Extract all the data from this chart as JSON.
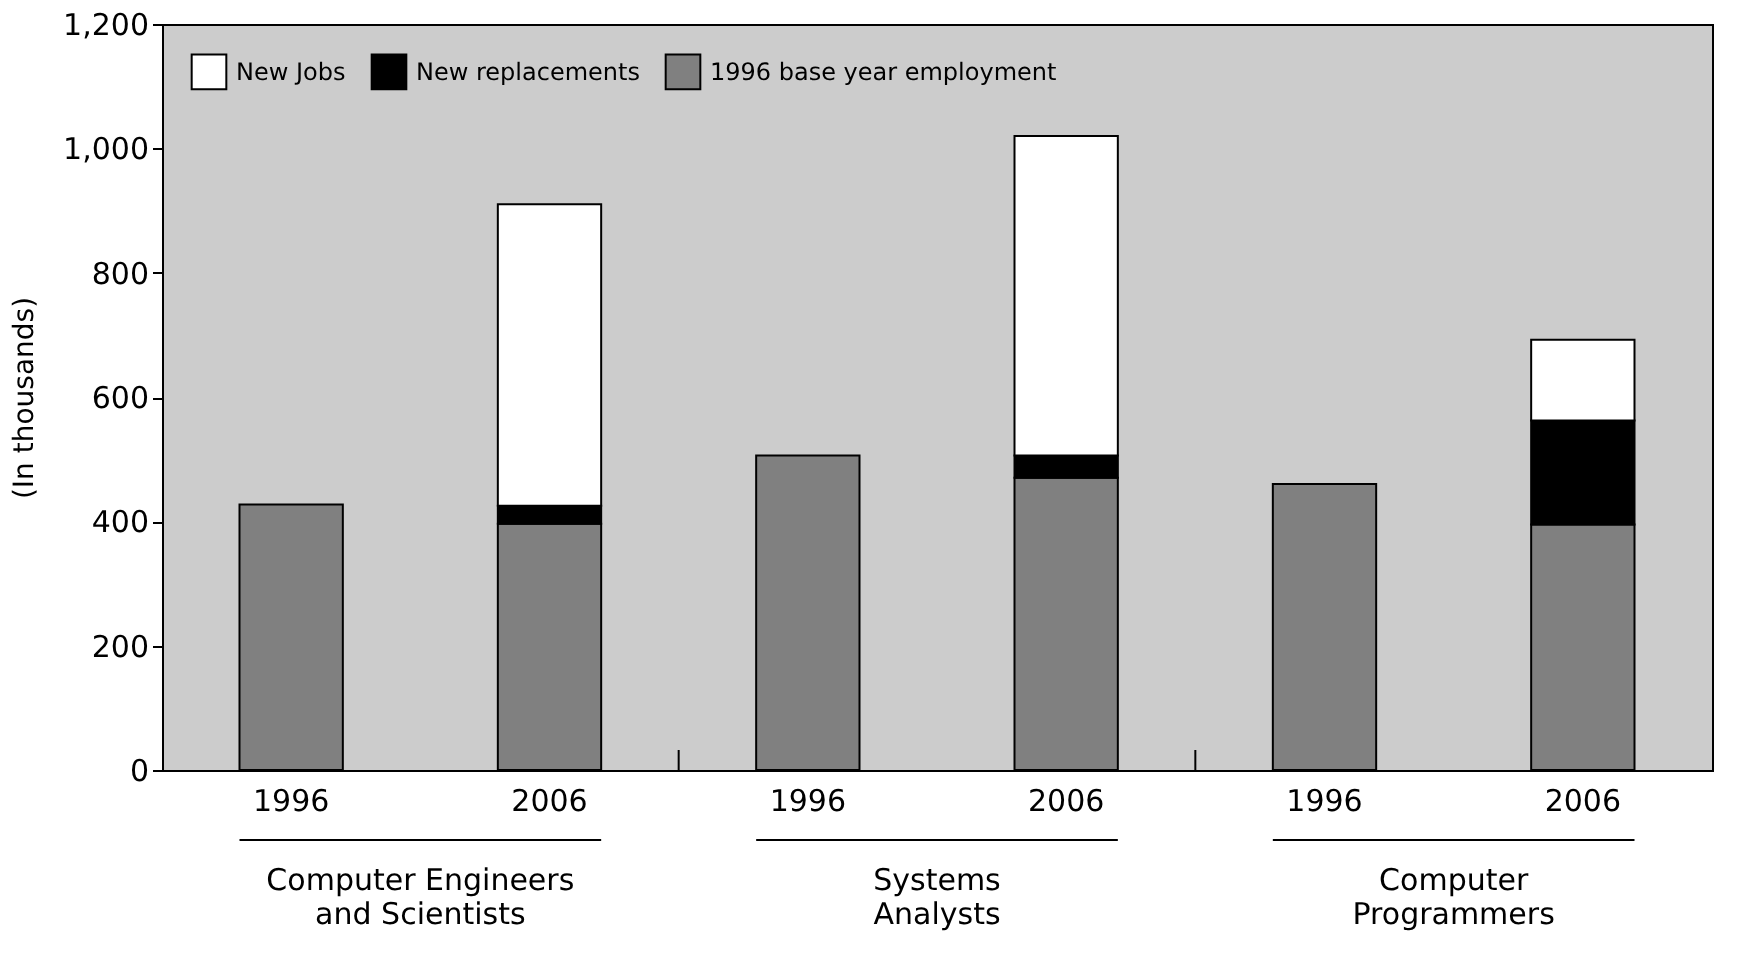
{
  "chart_data": {
    "type": "bar",
    "stacked": true,
    "ylabel": "(In thousands)",
    "categories": [
      "1996",
      "2006",
      "1996",
      "2006",
      "1996",
      "2006"
    ],
    "series": [
      {
        "name": "1996 base year employment",
        "color": "#808080",
        "values": [
          427,
          396,
          506,
          470,
          460,
          395
        ]
      },
      {
        "name": "New replacements",
        "color": "#000000",
        "values": [
          null,
          29,
          null,
          36,
          null,
          167
        ]
      },
      {
        "name": "New Jobs",
        "color": "#ffffff",
        "values": [
          null,
          485,
          null,
          514,
          null,
          130
        ]
      }
    ],
    "annotations": [
      "Computer Engineers and Scientists",
      "Systems Analysts",
      "Computer Programmers"
    ],
    "ylim": [
      0,
      1200
    ],
    "yticks": [
      0,
      200,
      400,
      600,
      800,
      {
        "value": 1000,
        "label": "1,000"
      },
      {
        "value": 1200,
        "label": "1,200"
      }
    ],
    "grid": false,
    "legend": "top left"
  }
}
